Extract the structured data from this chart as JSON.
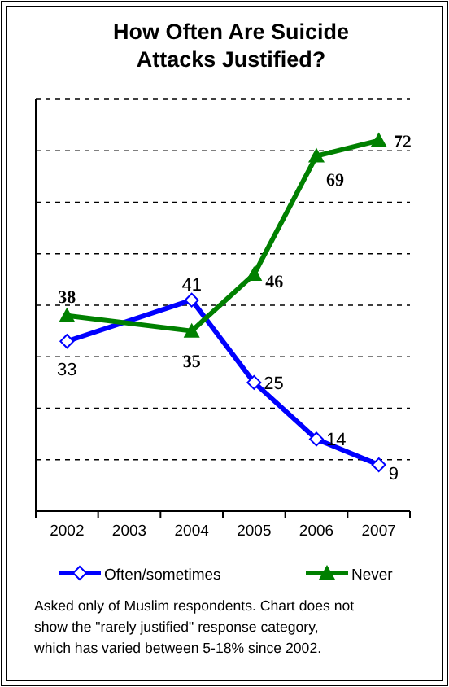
{
  "chart_data": {
    "type": "line",
    "title": "How Often Are Suicide Attacks Justified?",
    "categories": [
      "2002",
      "2003",
      "2004",
      "2005",
      "2006",
      "2007"
    ],
    "series": [
      {
        "name": "Often/sometimes",
        "color": "#0000ff",
        "marker": "diamond",
        "values": [
          33,
          null,
          41,
          25,
          14,
          9
        ]
      },
      {
        "name": "Never",
        "color": "#008000",
        "marker": "triangle",
        "values": [
          38,
          null,
          35,
          46,
          69,
          72
        ]
      }
    ],
    "ylim": [
      0,
      80
    ],
    "yticks": [
      {
        "value": 0,
        "label": null
      },
      {
        "value": 10,
        "label": null
      },
      {
        "value": 20,
        "label": null
      },
      {
        "value": 30,
        "label": null
      },
      {
        "value": 40,
        "label": null
      },
      {
        "value": 50,
        "label": null
      },
      {
        "value": 60,
        "label": null
      },
      {
        "value": 70,
        "label": null
      },
      {
        "value": 80,
        "label": null
      }
    ],
    "grid": "y",
    "tick_labels": "x",
    "legend": "bottom",
    "data_labels": true,
    "annotations": [
      "Asked only of Muslim respondents. Chart does not show the \"rarely justified\" response category, which has varied between 5-18% since 2002."
    ]
  }
}
